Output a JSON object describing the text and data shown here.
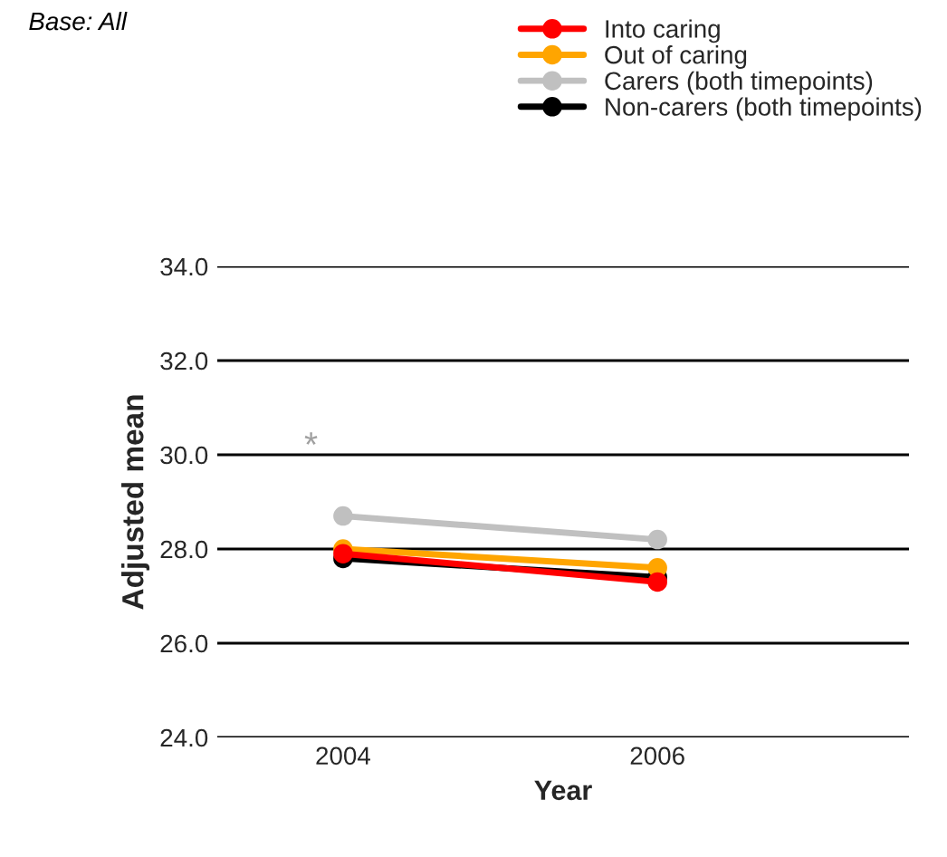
{
  "chart_data": {
    "type": "line",
    "xlabel": "Year",
    "ylabel": "Adjusted mean",
    "categories": [
      "2004",
      "2006"
    ],
    "series": [
      {
        "name": "Into caring",
        "color": "#ff0000",
        "values": [
          27.9,
          27.3
        ]
      },
      {
        "name": "Out of caring",
        "color": "#ffa500",
        "values": [
          28.0,
          27.6
        ]
      },
      {
        "name": "Carers (both timepoints)",
        "color": "#c0c0c0",
        "values": [
          28.7,
          28.2
        ]
      },
      {
        "name": "Non-carers (both timepoints)",
        "color": "#000000",
        "values": [
          27.8,
          27.4
        ]
      }
    ],
    "ylim": [
      24,
      34
    ],
    "yticks": [
      {
        "value": 24,
        "label": "24.0"
      },
      {
        "value": 26,
        "label": "26.0"
      },
      {
        "value": 28,
        "label": "28.0"
      },
      {
        "value": 30,
        "label": "30.0"
      },
      {
        "value": 32,
        "label": "32.0"
      },
      {
        "value": 34,
        "label": "34.0"
      }
    ],
    "grid": "y",
    "legend": "top right",
    "marker": "circle",
    "line_style": "solid",
    "annotations": [
      "Base: All",
      "*"
    ]
  }
}
